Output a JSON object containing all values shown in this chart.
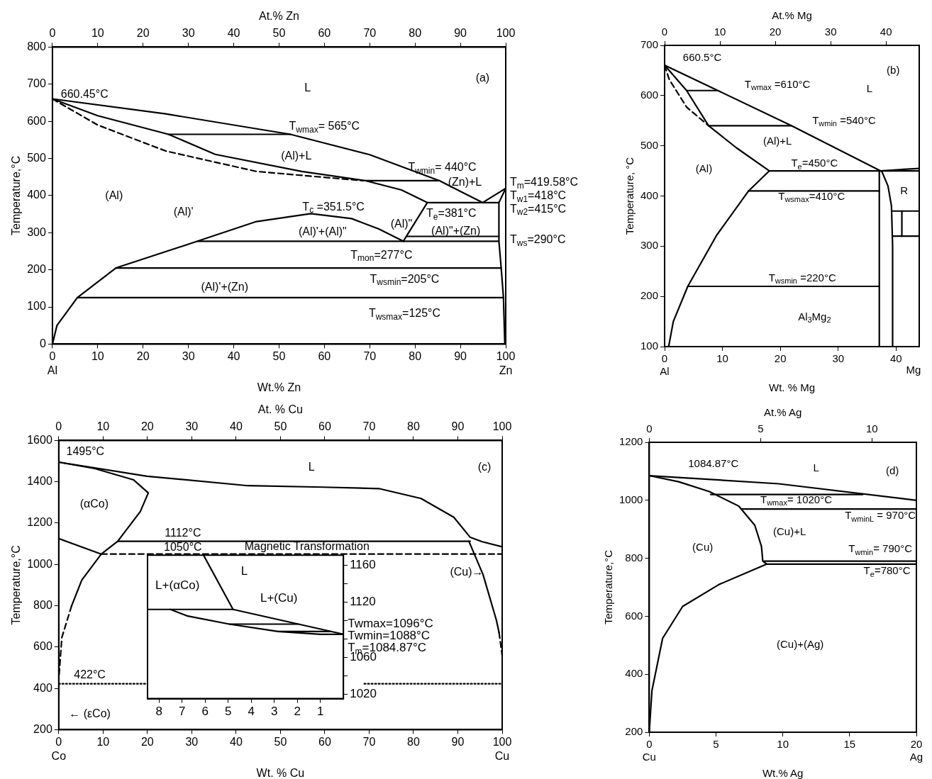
{
  "chart_data": [
    {
      "type": "line",
      "xlabel": "Wt.% Zn",
      "x2label": "At.% Zn",
      "ylabel": "Temperature,°C",
      "xlim": [
        0,
        100
      ],
      "ylim": [
        0,
        800
      ],
      "x2lim": [
        0,
        100
      ],
      "xticks": [
        {
          "value": 0,
          "label": "0\nAl"
        },
        10,
        20,
        30,
        40,
        50,
        60,
        70,
        80,
        90,
        {
          "value": 100,
          "label": "100\nZn"
        }
      ],
      "yticks": [
        0,
        100,
        200,
        300,
        400,
        500,
        600,
        700,
        800
      ],
      "x2ticks": [
        0,
        10,
        20,
        30,
        40,
        50,
        60,
        70,
        80,
        90,
        100
      ],
      "grid": false,
      "legend": false,
      "marker": "none",
      "series": [
        {
          "color": "#000000",
          "x": [
            0,
            25,
            52.5,
            70,
            85.4,
            91,
            94.9,
            100
          ],
          "values": [
            660.45,
            620,
            565,
            510,
            440,
            405,
            381,
            419.58
          ]
        },
        {
          "color": "#000000",
          "x": [
            0,
            10,
            25.6,
            35.9,
            55,
            69.1,
            77,
            82.7
          ],
          "values": [
            660.45,
            615,
            565,
            511,
            465,
            440,
            415,
            381
          ]
        },
        {
          "color": "#000000",
          "line_style": "dashed",
          "x": [
            0,
            10,
            25,
            45,
            68.6
          ],
          "values": [
            660.45,
            590,
            520,
            465,
            440
          ]
        },
        {
          "color": "#000000",
          "x": [
            25.6,
            52.5
          ],
          "values": [
            565,
            565
          ]
        },
        {
          "color": "#000000",
          "x": [
            69.1,
            85.4
          ],
          "values": [
            440,
            440
          ]
        },
        {
          "color": "#000000",
          "x": [
            82.7,
            98.5
          ],
          "values": [
            381,
            381
          ]
        },
        {
          "color": "#000000",
          "x": [
            82.7,
            77.4
          ],
          "values": [
            381,
            277
          ]
        },
        {
          "color": "#000000",
          "x": [
            0,
            1,
            5.5,
            14,
            32,
            45,
            57,
            66,
            72,
            77.4
          ],
          "values": [
            0,
            50,
            125,
            205,
            277,
            330,
            351.5,
            338,
            310,
            277
          ]
        },
        {
          "color": "#000000",
          "x": [
            32,
            98.5
          ],
          "values": [
            277,
            277
          ]
        },
        {
          "color": "#000000",
          "x": [
            78.2,
            98.5
          ],
          "values": [
            290,
            290
          ]
        },
        {
          "color": "#000000",
          "x": [
            14,
            99
          ],
          "values": [
            205,
            205
          ]
        },
        {
          "color": "#000000",
          "x": [
            5.5,
            99.5
          ],
          "values": [
            125,
            125
          ]
        },
        {
          "color": "#000000",
          "x": [
            100,
            98.5,
            98.5,
            99,
            99.5,
            99.8
          ],
          "values": [
            419.58,
            381,
            277,
            205,
            125,
            0
          ]
        }
      ],
      "annotations": [
        "660.45°C",
        "L",
        "(a)",
        "T$_{wmax}$= 565°C",
        "(Al)+L",
        "T$_{wmin}$= 440°C",
        "(Al)",
        "(Zn)+L",
        "T$_{m}$=419.58°C",
        "T$_{w1}$=418°C",
        "T$_{w2}$=415°C",
        "T$_{ws}$=290°C",
        "T$_{c}$ =351.5°C",
        "(Al)'",
        "(Al)'+(Al)\"",
        "(Al)\"",
        "T$_{e}$=381°C",
        "(Al)\"+(Zn)",
        "T$_{mon}$=277°C",
        "T$_{wsmin}$=205°C",
        "(Al)'+(Zn)",
        "T$_{wsmax}$=125°C"
      ]
    },
    {
      "type": "line",
      "xlabel": "Wt. % Mg",
      "x2label": "At.% Mg",
      "ylabel": "Temperature, °C",
      "xlim": [
        0,
        44
      ],
      "ylim": [
        100,
        700
      ],
      "x2lim": [
        0,
        46
      ],
      "xticks": [
        {
          "value": 0,
          "label": "0\nAl"
        },
        10,
        20,
        30,
        40
      ],
      "yticks": [
        100,
        200,
        300,
        400,
        500,
        600,
        700
      ],
      "x2ticks": [
        0,
        10,
        20,
        30,
        40
      ],
      "grid": false,
      "legend": false,
      "marker": "none",
      "series": [
        {
          "color": "#000000",
          "x": [
            0,
            9.2,
            21.9,
            37.3,
            44
          ],
          "values": [
            660.5,
            610,
            540,
            450,
            455
          ]
        },
        {
          "color": "#000000",
          "x": [
            0,
            3.8,
            7.6,
            12.4,
            18.1
          ],
          "values": [
            660.5,
            610,
            540,
            496,
            450
          ]
        },
        {
          "color": "#000000",
          "line_style": "dashed",
          "x": [
            0,
            0.8,
            3.8,
            7.6
          ],
          "values": [
            660.5,
            632,
            577,
            540
          ]
        },
        {
          "color": "#000000",
          "x": [
            3.8,
            9.2
          ],
          "values": [
            610,
            610
          ]
        },
        {
          "color": "#000000",
          "x": [
            7.6,
            21.9
          ],
          "values": [
            540,
            540
          ]
        },
        {
          "color": "#000000",
          "x": [
            18.1,
            44
          ],
          "values": [
            450,
            450
          ]
        },
        {
          "color": "#000000",
          "x": [
            18.1,
            14.5,
            9,
            4,
            1.5,
            0.7
          ],
          "values": [
            450,
            410,
            322,
            220,
            150,
            100
          ]
        },
        {
          "color": "#000000",
          "x": [
            14.5,
            37.1
          ],
          "values": [
            410,
            410
          ]
        },
        {
          "color": "#000000",
          "x": [
            4,
            37.1
          ],
          "values": [
            220,
            220
          ]
        },
        {
          "color": "#000000",
          "x": [
            37.1,
            37.1
          ],
          "values": [
            100,
            450
          ]
        },
        {
          "color": "#000000",
          "x": [
            37.5,
            38.6,
            39.2,
            39.4,
            39.4
          ],
          "values": [
            450,
            420,
            380,
            300,
            100
          ]
        },
        {
          "color": "#000000",
          "x": [
            39.4,
            44
          ],
          "values": [
            370,
            370
          ]
        },
        {
          "color": "#000000",
          "x": [
            39.4,
            44
          ],
          "values": [
            320,
            320
          ]
        },
        {
          "color": "#000000",
          "x": [
            41,
            41
          ],
          "values": [
            320,
            370
          ]
        }
      ],
      "annotations": [
        "660.5°C",
        "(b)",
        "L",
        "T$_{wmax}$ =610°C",
        "T$_{wmin}$ =540°C",
        "(Al)+L",
        "(Al)",
        "T$_{e}$=450°C",
        "T$_{wsmax}$=410°C",
        "T$_{wsmin}$ =220°C",
        "Al$_{3}$Mg$_{2}$",
        "R",
        "Mg"
      ]
    },
    {
      "type": "line",
      "xlabel": "Wt. % Cu",
      "x2label": "At. % Cu",
      "ylabel": "Temperature,°C",
      "xlim": [
        0,
        100
      ],
      "ylim": [
        200,
        1600
      ],
      "x2lim": [
        0,
        100
      ],
      "xticks": [
        {
          "value": 0,
          "label": "0\nCo"
        },
        10,
        20,
        30,
        40,
        50,
        60,
        70,
        80,
        90,
        {
          "value": 100,
          "label": "100\nCu"
        }
      ],
      "yticks": [
        200,
        400,
        600,
        800,
        1000,
        1200,
        1400,
        1600
      ],
      "x2ticks": [
        0,
        10,
        20,
        30,
        40,
        50,
        60,
        70,
        80,
        90,
        100
      ],
      "grid": false,
      "legend": false,
      "marker": "none",
      "series": [
        {
          "color": "#000000",
          "x": [
            0,
            19.9,
            42.7,
            59.6,
            72.2,
            81.7,
            89.1,
            92.8,
            95.5,
            100
          ],
          "values": [
            1495,
            1427,
            1381,
            1374,
            1367,
            1319,
            1228,
            1131,
            1110,
            1085
          ]
        },
        {
          "color": "#000000",
          "x": [
            0,
            8.1,
            16.9,
            20.2,
            18.4,
            13.3,
            9.6,
            5.2,
            2.9
          ],
          "values": [
            1495,
            1464,
            1409,
            1346,
            1256,
            1112,
            1050,
            924,
            799
          ]
        },
        {
          "color": "#000000",
          "line_style": "dashed",
          "x": [
            2.9,
            0.7,
            0
          ],
          "values": [
            799,
            646,
            440
          ]
        },
        {
          "color": "#000000",
          "x": [
            0,
            9.6
          ],
          "values": [
            1125,
            1050
          ]
        },
        {
          "color": "#000000",
          "x": [
            13.3,
            92.8
          ],
          "values": [
            1112,
            1112
          ]
        },
        {
          "color": "#000000",
          "line_style": "dashed",
          "x": [
            9.6,
            100
          ],
          "values": [
            1050,
            1050
          ]
        },
        {
          "color": "#000000",
          "x": [
            92.5,
            95.7,
            98.7,
            99.3
          ],
          "values": [
            1112,
            950,
            730,
            670
          ]
        },
        {
          "color": "#000000",
          "line_style": "dashed",
          "x": [
            99.3,
            100
          ],
          "values": [
            670,
            560
          ]
        },
        {
          "color": "#000000",
          "line_style": "dotted",
          "x": [
            0,
            20.6
          ],
          "values": [
            422,
            422
          ]
        },
        {
          "color": "#000000",
          "line_style": "dotted",
          "x": [
            68.9,
            100
          ],
          "values": [
            422,
            422
          ]
        }
      ],
      "annotations": [
        "1495°C",
        "L",
        "(c)",
        "(αCo)",
        "1112°C",
        "1050°C",
        "Magnetic Transformation",
        "(Cu)→",
        "422°C",
        "← (εCo)"
      ]
    },
    {
      "type": "line",
      "xlabel": "Wt.% Ag",
      "x2label": "At.% Ag",
      "ylabel": "Temperature,°C",
      "xlim": [
        0,
        20
      ],
      "ylim": [
        200,
        1200
      ],
      "x2lim": [
        0,
        12
      ],
      "xticks": [
        {
          "value": 0,
          "label": "0\nCu"
        },
        5,
        10,
        15,
        {
          "value": 20,
          "label": "20\nAg"
        }
      ],
      "yticks": [
        200,
        400,
        600,
        800,
        1000,
        1200
      ],
      "x2ticks": [
        0,
        5,
        10
      ],
      "grid": false,
      "legend": false,
      "marker": "none",
      "series": [
        {
          "color": "#000000",
          "x": [
            0,
            9.7,
            20
          ],
          "values": [
            1085,
            1057,
            1000
          ]
        },
        {
          "color": "#000000",
          "x": [
            0,
            2.2,
            4.5,
            6.7,
            7.9,
            8.4,
            8.5,
            8.8,
            5.2,
            2.5,
            1,
            0.2,
            0
          ],
          "values": [
            1085,
            1064,
            1030,
            980,
            914,
            841,
            790,
            780,
            709,
            634,
            524,
            343,
            200
          ]
        },
        {
          "color": "#000000",
          "x": [
            4.6,
            16
          ],
          "values": [
            1020,
            1020
          ]
        },
        {
          "color": "#000000",
          "x": [
            6.9,
            20
          ],
          "values": [
            970,
            970
          ]
        },
        {
          "color": "#000000",
          "x": [
            8.6,
            20
          ],
          "values": [
            790,
            790
          ]
        },
        {
          "color": "#000000",
          "x": [
            8.8,
            20
          ],
          "values": [
            780,
            780
          ]
        }
      ],
      "annotations": [
        "1084.87°C",
        "L",
        "(d)",
        "T$_{wmax}$= 1020°C",
        "T$_{wminL}$ = 970°C",
        "(Cu)+L",
        "(Cu)",
        "T$_{wmin}$= 790°C",
        "T$_{e}$=780°C",
        "(Cu)+(Ag)"
      ]
    },
    {
      "type": "line",
      "xlim": [
        8.5,
        0
      ],
      "y2lim": [
        1015,
        1171
      ],
      "xticks": [
        8,
        7,
        6,
        5,
        4,
        3,
        2,
        1
      ],
      "y2ticks": [
        1020,
        {
          "value": 1040,
          "label": null
        },
        1060,
        {
          "value": 1080,
          "label": null
        },
        {
          "value": 1100,
          "label": null
        },
        1120,
        {
          "value": 1140,
          "label": null
        },
        1160
      ],
      "grid": false,
      "legend": false,
      "marker": "none",
      "series": [
        {
          "color": "#000000",
          "axis": "y2",
          "x": [
            6.07,
            4.79
          ],
          "values": [
            1171,
            1112
          ]
        },
        {
          "color": "#000000",
          "axis": "y2",
          "x": [
            8.5,
            4.79,
            0
          ],
          "values": [
            1112,
            1112,
            1085
          ]
        },
        {
          "color": "#000000",
          "axis": "y2",
          "x": [
            7.51,
            6.79,
            4.95,
            2.84,
            1,
            0
          ],
          "values": [
            1112,
            1105,
            1096,
            1088,
            1085,
            1085
          ]
        },
        {
          "color": "#000000",
          "axis": "y2",
          "x": [
            4.95,
            1.97
          ],
          "values": [
            1096,
            1096
          ]
        },
        {
          "color": "#000000",
          "axis": "y2",
          "x": [
            2.84,
            0.55
          ],
          "values": [
            1088,
            1088
          ]
        }
      ],
      "annotations": [
        "L",
        "L+(αCo)",
        "L+(Cu)",
        "Twmax=1096°C",
        "Twmin=1088°C",
        "T$_{m}$=1084.87°C"
      ]
    }
  ]
}
